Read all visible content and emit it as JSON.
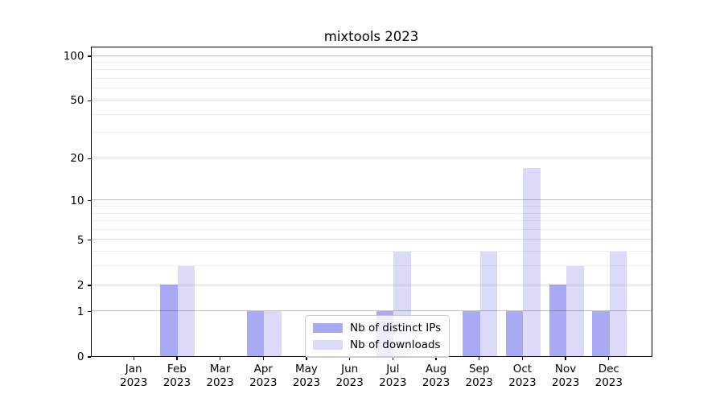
{
  "chart_data": {
    "type": "bar",
    "title": "mixtools 2023",
    "categories": [
      "Jan",
      "Feb",
      "Mar",
      "Apr",
      "May",
      "Jun",
      "Jul",
      "Aug",
      "Sep",
      "Oct",
      "Nov",
      "Dec"
    ],
    "year_label": "2023",
    "series": [
      {
        "name": "Nb of distinct IPs",
        "color": "#a9a9f4",
        "values": [
          0,
          2,
          0,
          1,
          0,
          0,
          1,
          0,
          1,
          1,
          2,
          1
        ]
      },
      {
        "name": "Nb of downloads",
        "color": "#dbdbf9",
        "values": [
          0,
          3,
          0,
          1,
          0,
          0,
          4,
          0,
          4,
          17,
          3,
          4
        ]
      }
    ],
    "yscale": "log1p",
    "ylim": [
      0,
      117
    ],
    "ytick_labels": [
      0,
      1,
      2,
      5,
      10,
      20,
      50,
      100
    ],
    "grid": {
      "major": [
        1,
        10,
        100
      ],
      "mid": [
        2,
        5,
        20,
        50
      ],
      "minor": [
        3,
        4,
        6,
        7,
        8,
        9,
        30,
        40,
        60,
        70,
        80,
        90
      ]
    },
    "legend_position": "lower-center",
    "grid_on": true
  }
}
